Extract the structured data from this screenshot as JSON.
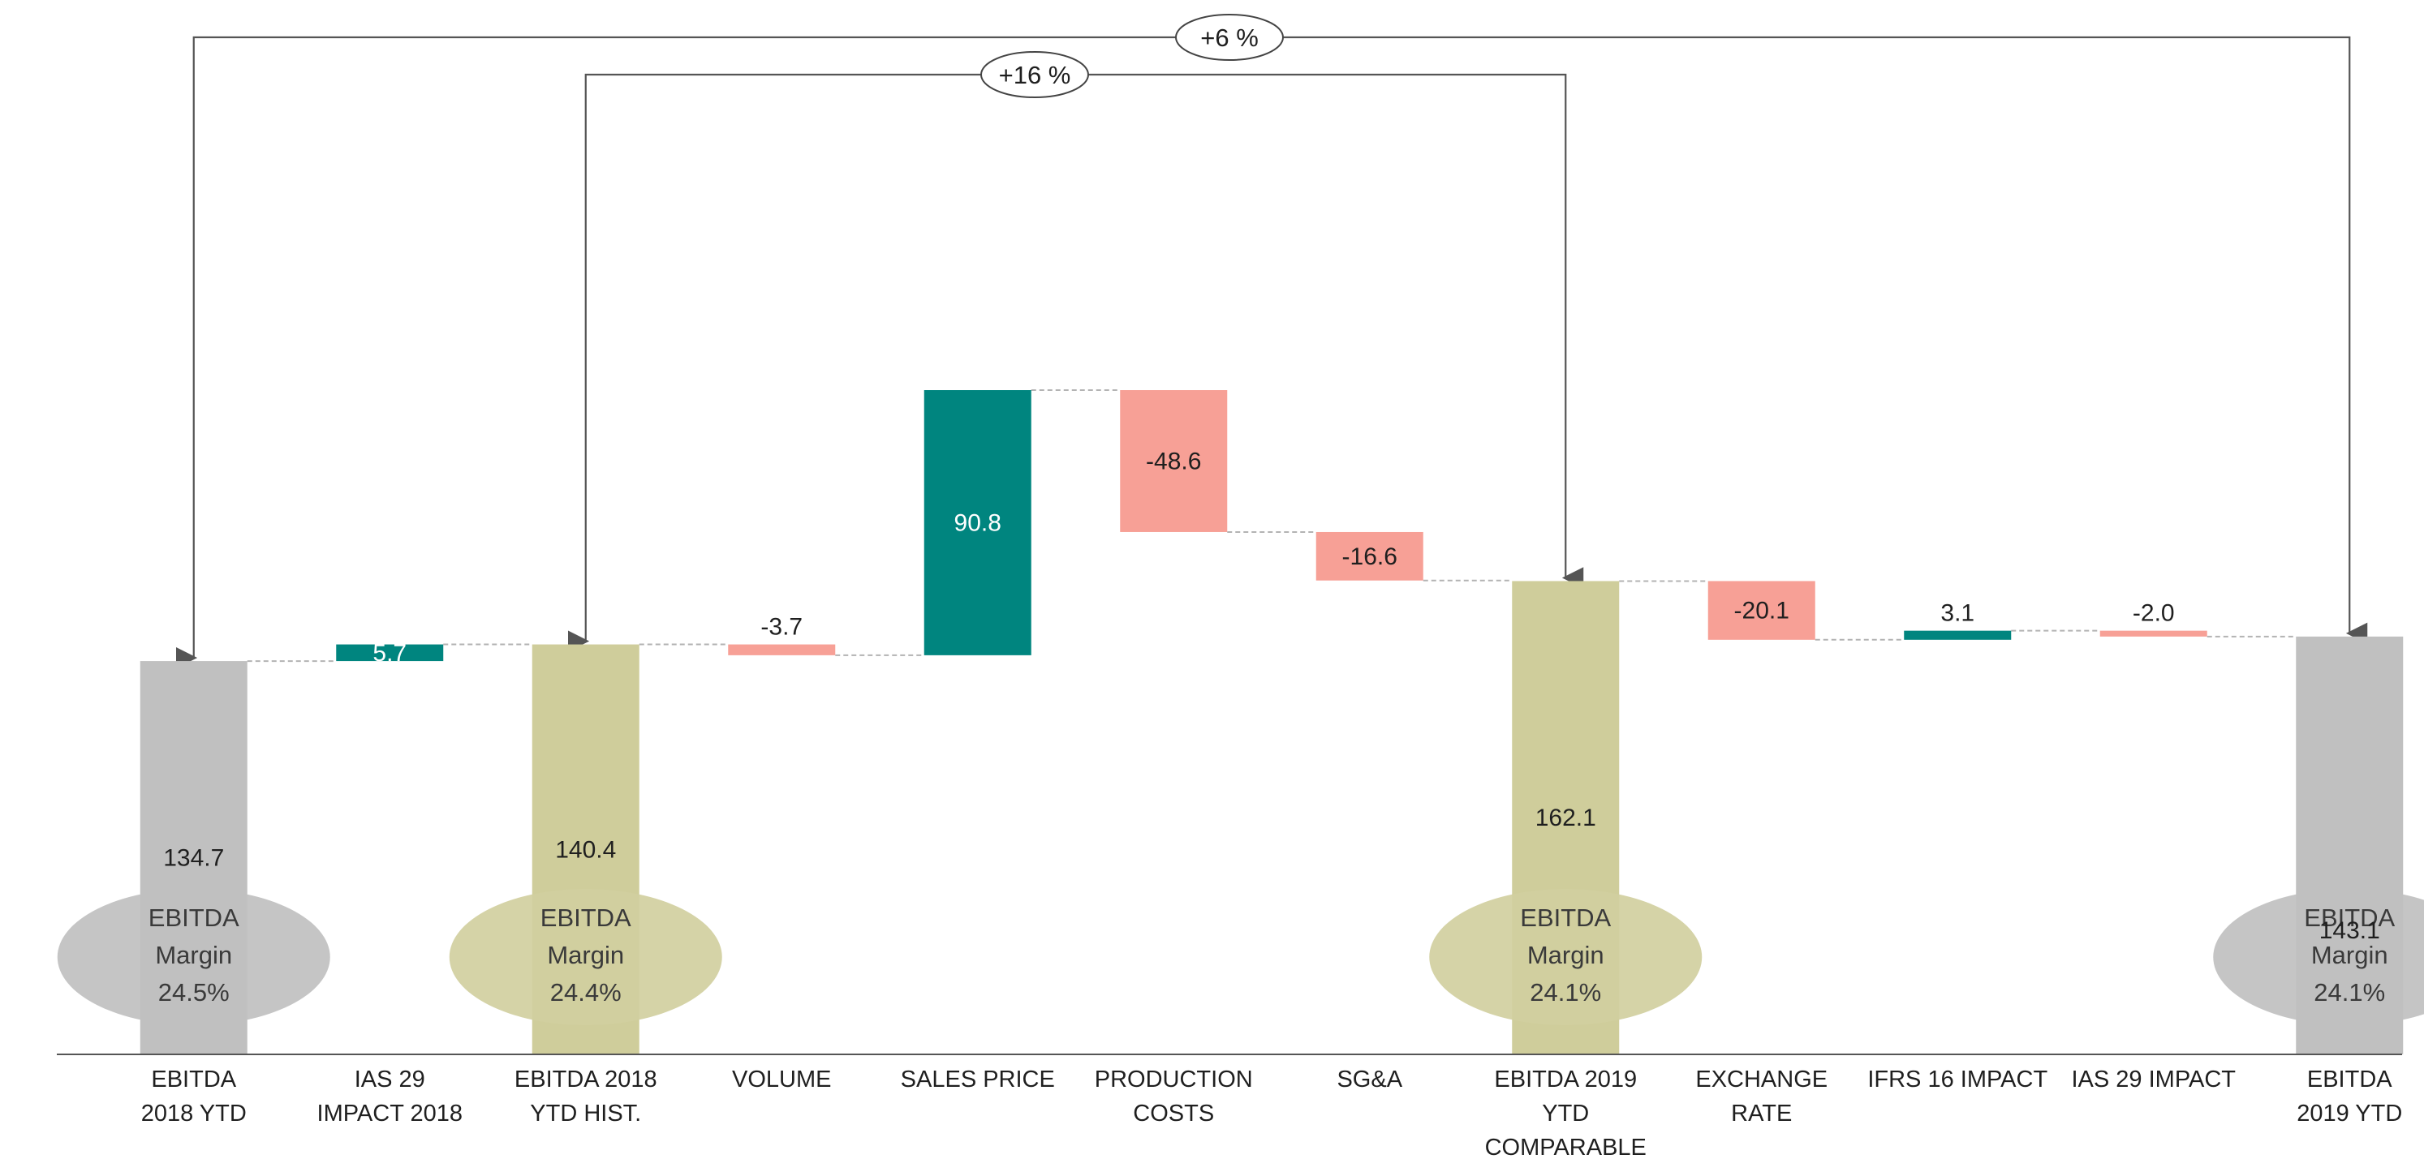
{
  "chart_data": {
    "type": "bar",
    "subtype": "waterfall",
    "title": "",
    "xlabel": "",
    "ylabel": "",
    "categories": [
      [
        "EBITDA",
        "2018 YTD"
      ],
      [
        "IAS 29",
        "IMPACT 2018"
      ],
      [
        "EBITDA 2018",
        "YTD HIST."
      ],
      [
        "VOLUME"
      ],
      [
        "SALES PRICE"
      ],
      [
        "PRODUCTION",
        "COSTS"
      ],
      [
        "SG&A"
      ],
      [
        "EBITDA 2019",
        "YTD",
        "COMPARABLE"
      ],
      [
        "EXCHANGE",
        "RATE"
      ],
      [
        "IFRS 16 IMPACT"
      ],
      [
        "IAS 29 IMPACT"
      ],
      [
        "EBITDA",
        "2019 YTD"
      ]
    ],
    "steps": [
      {
        "kind": "total",
        "value": 134.7,
        "label": "134.7"
      },
      {
        "kind": "delta",
        "value": 5.7,
        "label": "5.7"
      },
      {
        "kind": "total",
        "value": 140.4,
        "label": "140.4"
      },
      {
        "kind": "delta",
        "value": -3.7,
        "label": "-3.7"
      },
      {
        "kind": "delta",
        "value": 90.8,
        "label": "90.8"
      },
      {
        "kind": "delta",
        "value": -48.6,
        "label": "-48.6"
      },
      {
        "kind": "delta",
        "value": -16.6,
        "label": "-16.6"
      },
      {
        "kind": "total",
        "value": 162.1,
        "label": "162.1"
      },
      {
        "kind": "delta",
        "value": -20.1,
        "label": "-20.1"
      },
      {
        "kind": "delta",
        "value": 3.1,
        "label": "3.1"
      },
      {
        "kind": "delta",
        "value": -2.0,
        "label": "-2.0"
      },
      {
        "kind": "total",
        "value": 143.1,
        "label": "143.1"
      }
    ],
    "margins": [
      {
        "index": 0,
        "lines": [
          "EBITDA",
          "Margin",
          "24.5%"
        ],
        "color": "#c0c0c0"
      },
      {
        "index": 2,
        "lines": [
          "EBITDA",
          "Margin",
          "24.4%"
        ],
        "color": "#d1cf9f"
      },
      {
        "index": 7,
        "lines": [
          "EBITDA",
          "Margin",
          "24.1%"
        ],
        "color": "#d1cf9f"
      },
      {
        "index": 11,
        "lines": [
          "EBITDA",
          "Margin",
          "24.1%"
        ],
        "color": "#c0c0c0"
      }
    ],
    "comparisons": [
      {
        "from": 2,
        "to": 7,
        "label": "+16 %"
      },
      {
        "from": 0,
        "to": 11,
        "label": "+6 %"
      }
    ],
    "colors": {
      "total_2018": "#c0c0c0",
      "total_hist": "#cfcd9b",
      "increase": "#00857f",
      "decrease": "#f7a096",
      "connector": "#b3b3b3",
      "arrow": "#555555"
    },
    "total_colors": [
      "#c0c0c0",
      "",
      "#cfcd9b",
      "",
      "",
      "",
      "",
      "#cfcd9b",
      "",
      "",
      "",
      "#c0c0c0"
    ],
    "ylim": [
      0,
      232
    ]
  }
}
